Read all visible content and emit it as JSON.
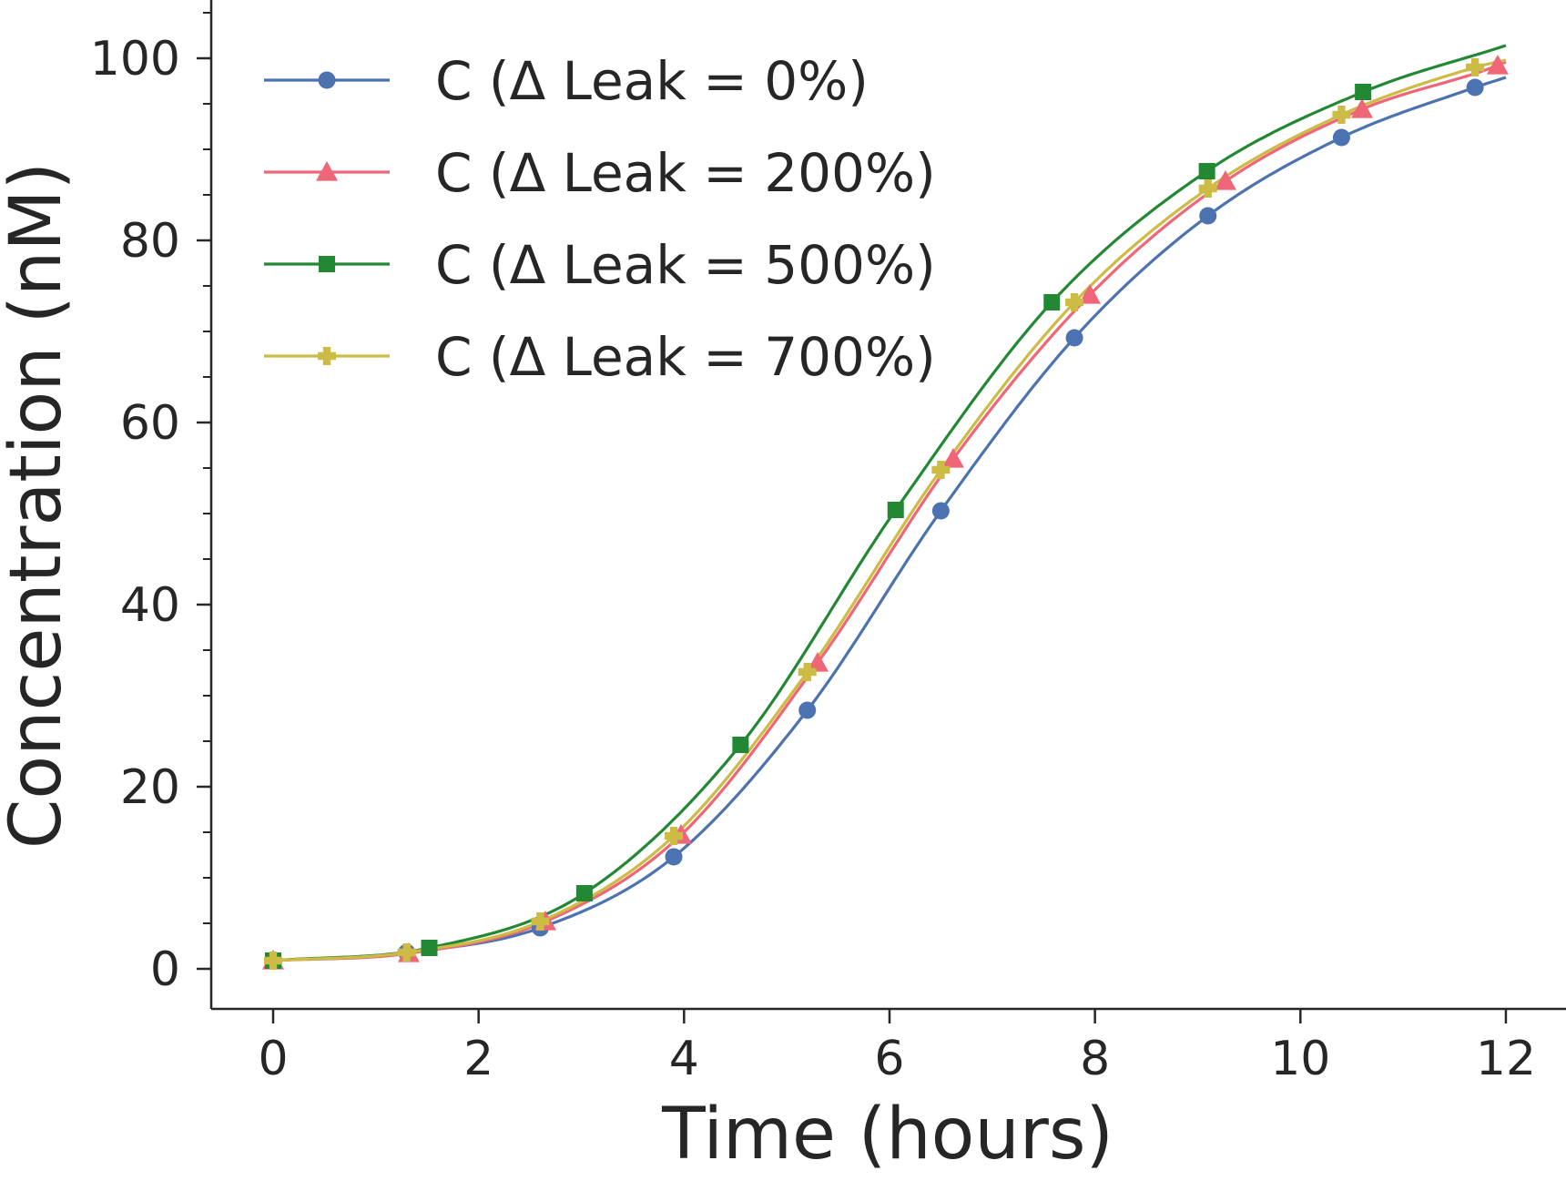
{
  "chart_data": {
    "type": "line",
    "xlabel": "Time (hours)",
    "ylabel": "Concentration (nM)",
    "xlim": [
      -0.6,
      12.6
    ],
    "ylim": [
      -4.4,
      106
    ],
    "xticks": [
      0,
      2,
      4,
      6,
      8,
      10,
      12
    ],
    "yticks": [
      0,
      20,
      40,
      60,
      80,
      100
    ],
    "grid": false,
    "legend_position": "upper-left",
    "series": [
      {
        "name": "C (Δ Leak = 0%)",
        "color": "#4c72b0",
        "marker": "circle",
        "x": [
          0,
          1.3,
          2.6,
          3.9,
          5.2,
          6.5,
          7.8,
          9.1,
          10.4,
          11.7,
          12
        ],
        "y": [
          0.9,
          1.8,
          4.5,
          12.3,
          28.4,
          50.3,
          69.3,
          82.7,
          91.3,
          96.8,
          97.9
        ],
        "marker_x": [
          0,
          1.3,
          2.6,
          3.9,
          5.2,
          6.5,
          7.8,
          9.1,
          10.4,
          11.7
        ]
      },
      {
        "name": "C (Δ Leak = 200%)",
        "color": "#ee6677",
        "marker": "triangle",
        "x": [
          0,
          1.32,
          2.65,
          3.97,
          5.3,
          6.62,
          7.95,
          9.27,
          10.6,
          11.92,
          12
        ],
        "y": [
          0.9,
          1.7,
          5.2,
          14.7,
          33.6,
          56.0,
          74.0,
          86.5,
          94.4,
          99.2,
          99.6
        ],
        "marker_x": [
          0,
          1.32,
          2.65,
          3.97,
          5.3,
          6.62,
          7.95,
          9.27,
          10.6,
          11.92
        ]
      },
      {
        "name": "C (Δ Leak = 500%)",
        "color": "#228833",
        "marker": "square",
        "x": [
          0,
          1.52,
          3.03,
          4.55,
          6.06,
          7.58,
          9.09,
          10.61,
          12
        ],
        "y": [
          0.9,
          2.3,
          8.3,
          24.6,
          50.4,
          73.2,
          87.6,
          96.3,
          101.4
        ],
        "marker_x": [
          0,
          1.52,
          3.03,
          4.55,
          6.06,
          7.58,
          9.09,
          10.61
        ]
      },
      {
        "name": "C (Δ Leak = 700%)",
        "color": "#ccbb44",
        "marker": "plus",
        "x": [
          0,
          1.3,
          2.6,
          3.9,
          5.2,
          6.5,
          7.8,
          9.1,
          10.4,
          11.7,
          12
        ],
        "y": [
          0.9,
          1.8,
          5.2,
          14.6,
          32.6,
          54.8,
          73.2,
          85.7,
          93.8,
          99.0,
          99.8
        ],
        "marker_x": [
          0,
          1.3,
          2.6,
          3.9,
          5.2,
          6.5,
          7.8,
          9.1,
          10.4,
          11.7
        ]
      }
    ]
  }
}
